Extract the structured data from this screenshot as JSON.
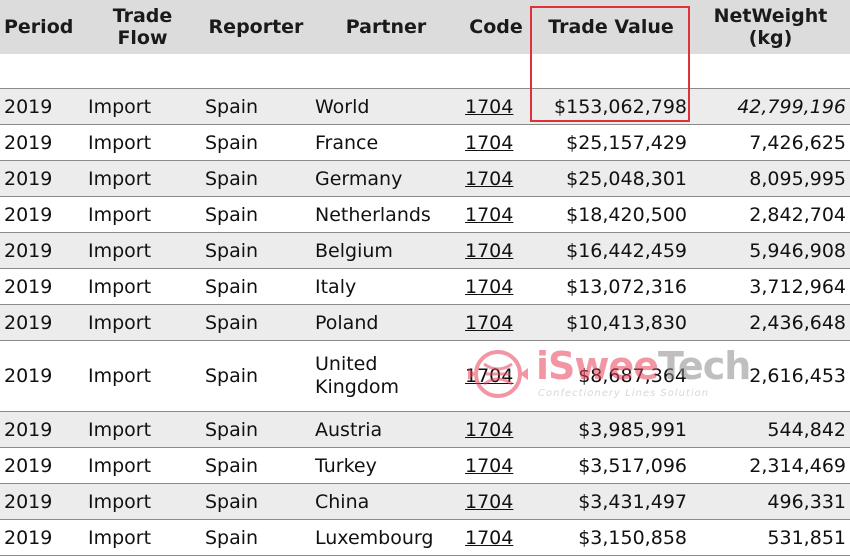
{
  "table": {
    "headers": {
      "period": "Period",
      "trade_flow": "Trade Flow",
      "reporter": "Reporter",
      "partner": "Partner",
      "code": "Code",
      "trade_value": "Trade Value",
      "net_weight": "NetWeight (kg)"
    },
    "rows": [
      {
        "period": "2019",
        "flow": "Import",
        "reporter": "Spain",
        "partner": "World",
        "code": "1704",
        "value": "$153,062,798",
        "weight": "42,799,196"
      },
      {
        "period": "2019",
        "flow": "Import",
        "reporter": "Spain",
        "partner": "France",
        "code": "1704",
        "value": "$25,157,429",
        "weight": "7,426,625"
      },
      {
        "period": "2019",
        "flow": "Import",
        "reporter": "Spain",
        "partner": "Germany",
        "code": "1704",
        "value": "$25,048,301",
        "weight": "8,095,995"
      },
      {
        "period": "2019",
        "flow": "Import",
        "reporter": "Spain",
        "partner": "Netherlands",
        "code": "1704",
        "value": "$18,420,500",
        "weight": "2,842,704"
      },
      {
        "period": "2019",
        "flow": "Import",
        "reporter": "Spain",
        "partner": "Belgium",
        "code": "1704",
        "value": "$16,442,459",
        "weight": "5,946,908"
      },
      {
        "period": "2019",
        "flow": "Import",
        "reporter": "Spain",
        "partner": "Italy",
        "code": "1704",
        "value": "$13,072,316",
        "weight": "3,712,964"
      },
      {
        "period": "2019",
        "flow": "Import",
        "reporter": "Spain",
        "partner": "Poland",
        "code": "1704",
        "value": "$10,413,830",
        "weight": "2,436,648"
      },
      {
        "period": "2019",
        "flow": "Import",
        "reporter": "Spain",
        "partner": "United Kingdom",
        "code": "1704",
        "value": "$8,687,364",
        "weight": "2,616,453"
      },
      {
        "period": "2019",
        "flow": "Import",
        "reporter": "Spain",
        "partner": "Austria",
        "code": "1704",
        "value": "$3,985,991",
        "weight": "544,842"
      },
      {
        "period": "2019",
        "flow": "Import",
        "reporter": "Spain",
        "partner": "Turkey",
        "code": "1704",
        "value": "$3,517,096",
        "weight": "2,314,469"
      },
      {
        "period": "2019",
        "flow": "Import",
        "reporter": "Spain",
        "partner": "China",
        "code": "1704",
        "value": "$3,431,497",
        "weight": "496,331"
      },
      {
        "period": "2019",
        "flow": "Import",
        "reporter": "Spain",
        "partner": "Luxembourg",
        "code": "1704",
        "value": "$3,150,858",
        "weight": "531,851"
      }
    ]
  },
  "watermark": {
    "name_a": "iSwee",
    "name_b": "Tech",
    "tagline": "Confectionery Lines Solution"
  },
  "colors": {
    "highlight": "#e0303a",
    "header_bg": "#dcdcdc",
    "stripe_bg": "#ececec"
  }
}
